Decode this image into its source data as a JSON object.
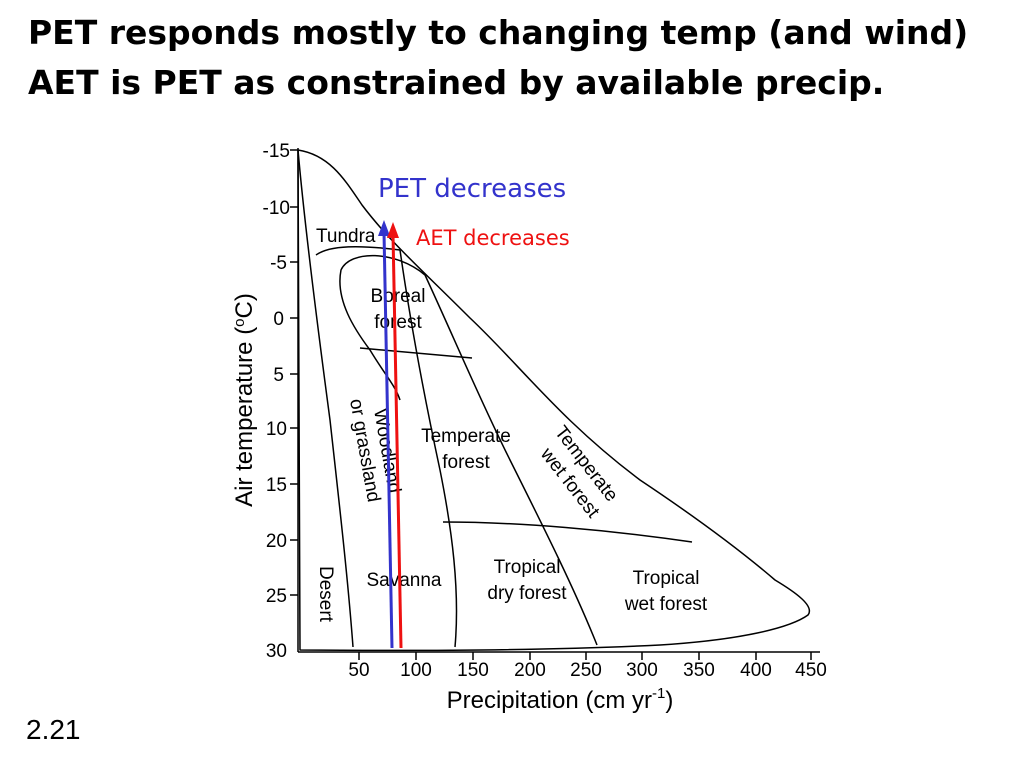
{
  "slide": {
    "title_line1": "PET responds mostly to changing temp (and wind)",
    "title_line2": "AET is PET as constrained by available precip.",
    "number": "2.21"
  },
  "diagram": {
    "y_axis_title": "Air temperature  (oC)",
    "x_axis_title": "Precipitation (cm yr-1)",
    "y_ticks": [
      "-15",
      "-10",
      "-5",
      "0",
      "5",
      "10",
      "15",
      "20",
      "25",
      "30"
    ],
    "x_ticks": [
      "50",
      "100",
      "150",
      "200",
      "250",
      "300",
      "350",
      "400",
      "450"
    ],
    "regions": {
      "tundra": "Tundra",
      "boreal_1": "Boreal",
      "boreal_2": "forest",
      "woodland_1": "Woodland",
      "woodland_2": "or grassland",
      "temperate_1": "Temperate",
      "temperate_2": "forest",
      "temperate_wet_1": "Temperate",
      "temperate_wet_2": "wet forest",
      "tropical_dry_1": "Tropical",
      "tropical_dry_2": "dry forest",
      "tropical_wet_1": "Tropical",
      "tropical_wet_2": "wet forest",
      "savanna": "Savanna",
      "desert": "Desert"
    },
    "arrows": {
      "pet_label": "PET decreases",
      "aet_label": "AET decreases",
      "pet_color": "#3333cc",
      "aet_color": "#ee1111"
    }
  }
}
